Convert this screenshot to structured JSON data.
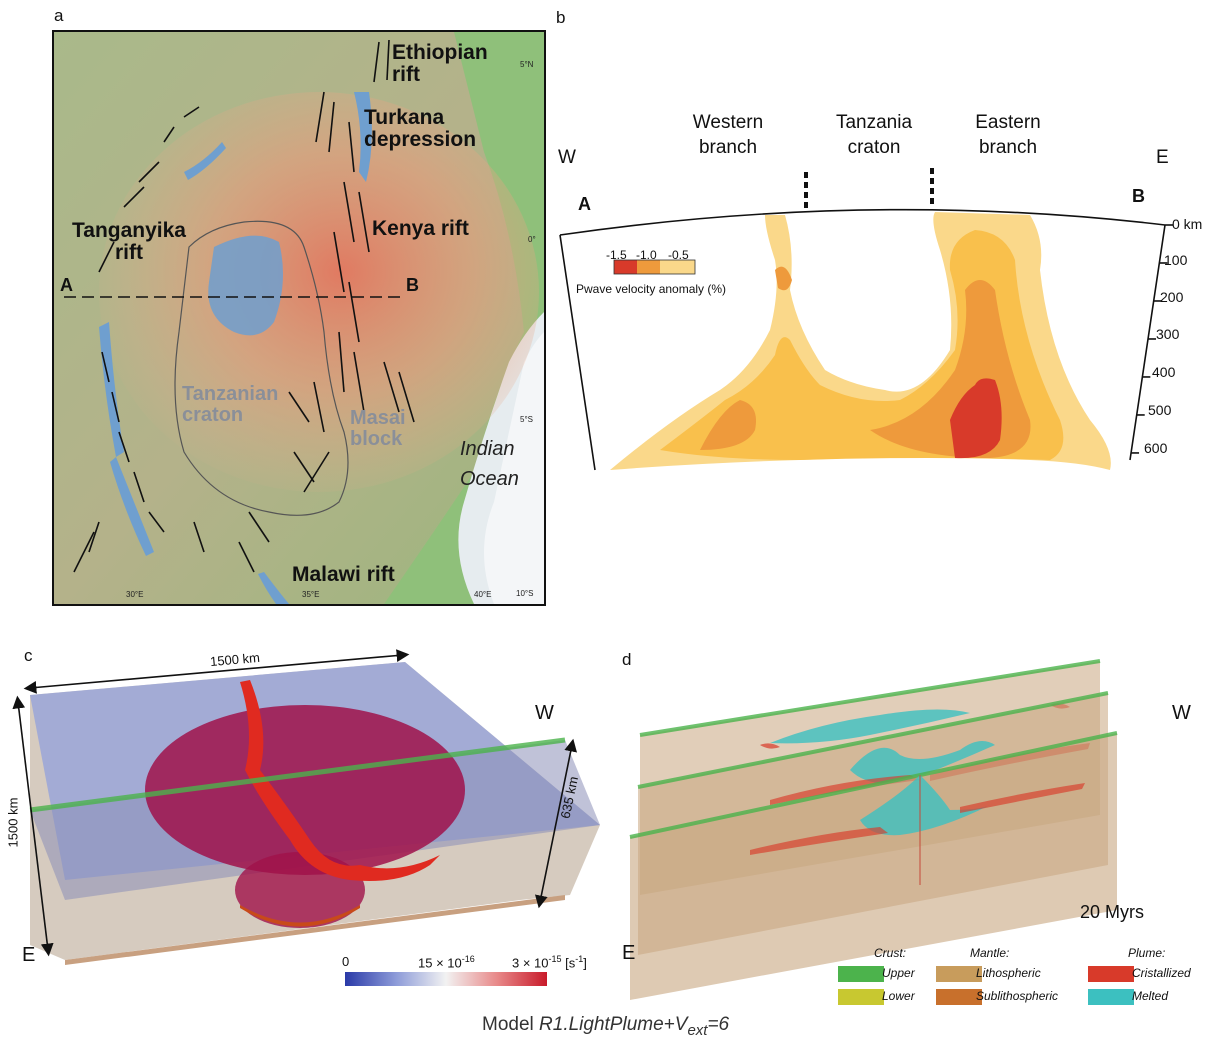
{
  "panel_a": {
    "label": "a",
    "labels": {
      "ethiopian_rift": "Ethiopian\nrift",
      "turkana": "Turkana\ndepression",
      "tanganyika": "Tanganyika\nrift",
      "kenya": "Kenya rift",
      "malawi": "Malawi rift",
      "tanzanian_craton": "Tanzanian\ncraton",
      "masai_block": "Masai\nblock",
      "indian_ocean": "Indian\nOcean",
      "point_a": "A",
      "point_b": "B"
    },
    "coords": {
      "lat_5n": "5°N",
      "lat_0": "0°",
      "lat_5s": "5°S",
      "lat_10s": "10°S",
      "lon_30e": "30°E",
      "lon_35e": "35°E",
      "lon_40e": "40°E"
    }
  },
  "panel_b": {
    "label": "b",
    "headers": {
      "western": "Western\nbranch",
      "craton": "Tanzania\ncraton",
      "eastern": "Eastern\nbranch"
    },
    "dir_w": "W",
    "dir_e": "E",
    "point_a": "A",
    "point_b": "B",
    "depth_ticks": [
      "0 km",
      "100",
      "200",
      "300",
      "400",
      "500",
      "600"
    ],
    "legend_title": "Pwave velocity anomaly (%)",
    "legend_values": [
      "-1.5",
      "-1.0",
      "-0.5"
    ]
  },
  "panel_c": {
    "label": "c",
    "width_label": "1500 km",
    "length_label": "1500 km",
    "depth_label": "635 km",
    "dir_w": "W",
    "dir_e": "E",
    "colorbar_labels": [
      "0",
      "15 × 10",
      "3 × 10",
      "[s"
    ],
    "colorbar_exponents": [
      "-16",
      "-15",
      "-1"
    ],
    "colorbar_close": "]"
  },
  "panel_d": {
    "label": "d",
    "dir_w": "W",
    "dir_e": "E",
    "time_label": "20 Myrs",
    "legend": {
      "crust_title": "Crust:",
      "mantle_title": "Mantle:",
      "plume_title": "Plume:",
      "upper": "Upper",
      "lower": "Lower",
      "lithospheric": "Lithospheric",
      "sublithospheric": "Sublithospheric",
      "cristallized": "Cristallized",
      "melted": "Melted"
    }
  },
  "model_caption": {
    "prefix": "Model ",
    "name": "R1.LightPlume+V",
    "subscript": "ext",
    "suffix": "=6"
  },
  "colors": {
    "upper_crust": "#4cb34c",
    "lower_crust": "#c8c830",
    "lithospheric": "#c89c5c",
    "sublithospheric": "#c8702c",
    "cristallized": "#d83a2a",
    "melted": "#3cc0c0"
  }
}
